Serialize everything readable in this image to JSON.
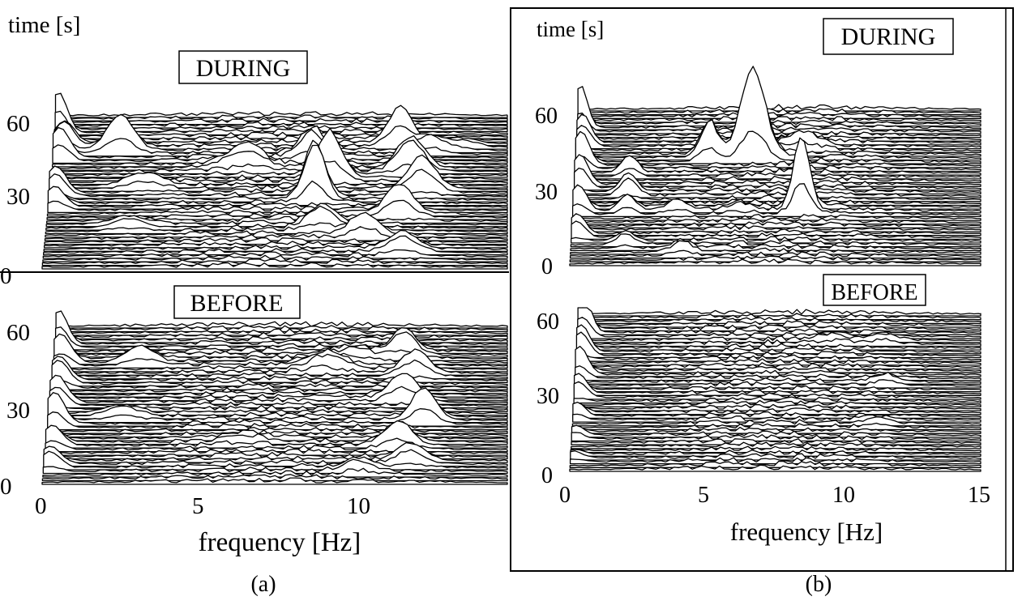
{
  "chart_data": [
    {
      "type": "area",
      "caption": "(a)",
      "ylabel": "time [s]",
      "xlabel": "frequency [Hz]",
      "x_ticks": [
        "0",
        "5",
        "10"
      ],
      "xlim": [
        0,
        14
      ],
      "panels": [
        {
          "label": "DURING",
          "y_ticks": [
            "0",
            "30",
            "60"
          ],
          "ylim": [
            0,
            75
          ],
          "peaks": [
            {
              "time": 66,
              "freq": 0.1,
              "amp": 55,
              "width": 0.25
            },
            {
              "time": 60,
              "freq": 0.3,
              "amp": 40,
              "width": 0.3
            },
            {
              "time": 54,
              "freq": 0.2,
              "amp": 38,
              "width": 0.3
            },
            {
              "time": 36,
              "freq": 0.2,
              "amp": 40,
              "width": 0.3
            },
            {
              "time": 30,
              "freq": 0.2,
              "amp": 28,
              "width": 0.3
            },
            {
              "time": 58,
              "freq": 2.0,
              "amp": 50,
              "width": 0.4
            },
            {
              "time": 40,
              "freq": 2.8,
              "amp": 16,
              "width": 0.5
            },
            {
              "time": 20,
              "freq": 2.5,
              "amp": 14,
              "width": 0.5
            },
            {
              "time": 50,
              "freq": 5.8,
              "amp": 30,
              "width": 0.5
            },
            {
              "time": 55,
              "freq": 7.8,
              "amp": 42,
              "width": 0.35
            },
            {
              "time": 44,
              "freq": 8.4,
              "amp": 65,
              "width": 0.35
            },
            {
              "time": 34,
              "freq": 8.0,
              "amp": 90,
              "width": 0.3
            },
            {
              "time": 20,
              "freq": 8.3,
              "amp": 30,
              "width": 0.4
            },
            {
              "time": 61,
              "freq": 10.4,
              "amp": 45,
              "width": 0.35
            },
            {
              "time": 48,
              "freq": 10.8,
              "amp": 50,
              "width": 0.4
            },
            {
              "time": 38,
              "freq": 11.2,
              "amp": 45,
              "width": 0.4
            },
            {
              "time": 26,
              "freq": 10.6,
              "amp": 38,
              "width": 0.4
            },
            {
              "time": 16,
              "freq": 9.6,
              "amp": 30,
              "width": 0.4
            },
            {
              "time": 8,
              "freq": 10.8,
              "amp": 26,
              "width": 0.45
            },
            {
              "time": 58,
              "freq": 11.3,
              "amp": 20,
              "width": 0.4
            },
            {
              "time": 60,
              "freq": 12.3,
              "amp": 10,
              "width": 0.4
            }
          ]
        },
        {
          "label": "BEFORE",
          "y_ticks": [
            "0",
            "30",
            "60"
          ],
          "ylim": [
            0,
            75
          ],
          "peaks": [
            {
              "time": 66,
              "freq": 0.1,
              "amp": 45,
              "width": 0.25
            },
            {
              "time": 58,
              "freq": 0.2,
              "amp": 40,
              "width": 0.3
            },
            {
              "time": 48,
              "freq": 0.2,
              "amp": 40,
              "width": 0.3
            },
            {
              "time": 38,
              "freq": 0.2,
              "amp": 38,
              "width": 0.3
            },
            {
              "time": 28,
              "freq": 0.2,
              "amp": 40,
              "width": 0.3
            },
            {
              "time": 18,
              "freq": 0.2,
              "amp": 30,
              "width": 0.3
            },
            {
              "time": 8,
              "freq": 0.2,
              "amp": 28,
              "width": 0.3
            },
            {
              "time": 58,
              "freq": 2.6,
              "amp": 22,
              "width": 0.4
            },
            {
              "time": 32,
              "freq": 2.2,
              "amp": 14,
              "width": 0.5
            },
            {
              "time": 55,
              "freq": 8.2,
              "amp": 22,
              "width": 0.5
            },
            {
              "time": 62,
              "freq": 10.5,
              "amp": 36,
              "width": 0.35
            },
            {
              "time": 52,
              "freq": 10.9,
              "amp": 30,
              "width": 0.4
            },
            {
              "time": 40,
              "freq": 10.6,
              "amp": 32,
              "width": 0.4
            },
            {
              "time": 30,
              "freq": 11.3,
              "amp": 45,
              "width": 0.35
            },
            {
              "time": 18,
              "freq": 10.6,
              "amp": 36,
              "width": 0.4
            },
            {
              "time": 10,
              "freq": 11.0,
              "amp": 24,
              "width": 0.4
            },
            {
              "time": 6,
              "freq": 9.5,
              "amp": 16,
              "width": 0.4
            },
            {
              "time": 60,
              "freq": 9.0,
              "amp": 14,
              "width": 0.6
            },
            {
              "time": 20,
              "freq": 6.0,
              "amp": 10,
              "width": 0.5
            }
          ]
        }
      ]
    },
    {
      "type": "area",
      "caption": "(b)",
      "ylabel": "time [s]",
      "xlabel": "frequency [Hz]",
      "x_ticks": [
        "0",
        "5",
        "10",
        "15"
      ],
      "xlim": [
        0,
        15
      ],
      "panels": [
        {
          "label": "DURING",
          "y_ticks": [
            "0",
            "30",
            "60"
          ],
          "ylim": [
            0,
            75
          ],
          "peaks": [
            {
              "time": 66,
              "freq": 0.1,
              "amp": 55,
              "width": 0.25
            },
            {
              "time": 58,
              "freq": 0.2,
              "amp": 42,
              "width": 0.3
            },
            {
              "time": 48,
              "freq": 0.2,
              "amp": 48,
              "width": 0.3
            },
            {
              "time": 38,
              "freq": 0.2,
              "amp": 42,
              "width": 0.3
            },
            {
              "time": 26,
              "freq": 0.2,
              "amp": 36,
              "width": 0.3
            },
            {
              "time": 14,
              "freq": 0.2,
              "amp": 30,
              "width": 0.3
            },
            {
              "time": 52,
              "freq": 4.9,
              "amp": 58,
              "width": 0.3
            },
            {
              "time": 52,
              "freq": 6.5,
              "amp": 140,
              "width": 0.45
            },
            {
              "time": 57,
              "freq": 8.3,
              "amp": 18,
              "width": 0.6
            },
            {
              "time": 26,
              "freq": 8.4,
              "amp": 100,
              "width": 0.3
            },
            {
              "time": 44,
              "freq": 2.0,
              "amp": 22,
              "width": 0.3
            },
            {
              "time": 34,
              "freq": 2.0,
              "amp": 30,
              "width": 0.3
            },
            {
              "time": 26,
              "freq": 2.0,
              "amp": 22,
              "width": 0.3
            },
            {
              "time": 10,
              "freq": 2.0,
              "amp": 18,
              "width": 0.3
            },
            {
              "time": 26,
              "freq": 3.8,
              "amp": 14,
              "width": 0.35
            },
            {
              "time": 6,
              "freq": 4.1,
              "amp": 14,
              "width": 0.35
            },
            {
              "time": 26,
              "freq": 6.1,
              "amp": 8,
              "width": 0.35
            }
          ]
        },
        {
          "label": "BEFORE",
          "y_ticks": [
            "0",
            "30",
            "60"
          ],
          "ylim": [
            0,
            75
          ],
          "peaks": [
            {
              "time": 66,
              "freq": 0.15,
              "amp": 55,
              "width": 0.3
            },
            {
              "time": 56,
              "freq": 0.15,
              "amp": 42,
              "width": 0.3
            },
            {
              "time": 46,
              "freq": 0.15,
              "amp": 38,
              "width": 0.3
            },
            {
              "time": 36,
              "freq": 0.15,
              "amp": 30,
              "width": 0.3
            },
            {
              "time": 26,
              "freq": 0.15,
              "amp": 20,
              "width": 0.3
            },
            {
              "time": 16,
              "freq": 0.15,
              "amp": 14,
              "width": 0.3
            },
            {
              "time": 6,
              "freq": 0.15,
              "amp": 10,
              "width": 0.3
            },
            {
              "time": 42,
              "freq": 11.4,
              "amp": 10,
              "width": 0.4
            },
            {
              "time": 22,
              "freq": 11.2,
              "amp": 8,
              "width": 0.4
            },
            {
              "time": 62,
              "freq": 11.3,
              "amp": 8,
              "width": 0.4
            },
            {
              "time": 62,
              "freq": 9.4,
              "amp": 6,
              "width": 0.5
            }
          ]
        }
      ]
    }
  ]
}
